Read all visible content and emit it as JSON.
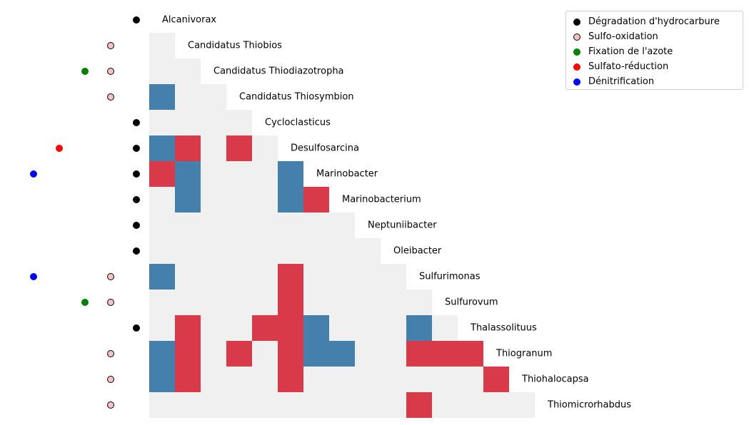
{
  "chart_data": {
    "type": "heatmap",
    "title": "",
    "description_layout": "lower-triangular matrix with genus labels on diagonal and function markers on the left",
    "genera": [
      "Alcanivorax",
      "Candidatus Thiobios",
      "Candidatus Thiodiazotropha",
      "Candidatus Thiosymbion",
      "Cycloclasticus",
      "Desulfosarcina",
      "Marinobacter",
      "Marinobacterium",
      "Neptuniibacter",
      "Oleibacter",
      "Sulfurimonas",
      "Sulfurovum",
      "Thalassolituus",
      "Thiogranum",
      "Thiohalocapsa",
      "Thiomicrorhabdus"
    ],
    "matrix_value_meaning": "1 = red association, -1 = blue association, 0 = none (light grey)",
    "matrix": [
      [],
      [
        0
      ],
      [
        0,
        0
      ],
      [
        -1,
        0,
        0
      ],
      [
        0,
        0,
        0,
        0
      ],
      [
        -1,
        1,
        0,
        1,
        0
      ],
      [
        1,
        -1,
        0,
        0,
        0,
        -1
      ],
      [
        0,
        -1,
        0,
        0,
        0,
        -1,
        1
      ],
      [
        0,
        0,
        0,
        0,
        0,
        0,
        0,
        0
      ],
      [
        0,
        0,
        0,
        0,
        0,
        0,
        0,
        0,
        0
      ],
      [
        -1,
        0,
        0,
        0,
        0,
        1,
        0,
        0,
        0,
        0
      ],
      [
        0,
        0,
        0,
        0,
        0,
        1,
        0,
        0,
        0,
        0,
        0
      ],
      [
        0,
        1,
        0,
        0,
        1,
        1,
        -1,
        0,
        0,
        0,
        -1,
        0
      ],
      [
        -1,
        1,
        0,
        1,
        0,
        1,
        -1,
        -1,
        0,
        0,
        1,
        1,
        1
      ],
      [
        -1,
        1,
        0,
        0,
        0,
        1,
        0,
        0,
        0,
        0,
        0,
        0,
        0,
        1
      ],
      [
        0,
        0,
        0,
        0,
        0,
        0,
        0,
        0,
        0,
        0,
        1,
        0,
        0,
        0,
        0
      ]
    ],
    "colors": {
      "positive": "#d93a49",
      "negative": "#4480ab",
      "neutral": "#f0f0f0"
    },
    "functions": [
      {
        "label": "Dégradation d'hydrocarbure",
        "color": "#000000",
        "edge": "#000000"
      },
      {
        "label": "Sulfo-oxidation",
        "color": "#f4c2c2",
        "edge": "#000000"
      },
      {
        "label": "Fixation de l'azote",
        "color": "#008000",
        "edge": "#008000"
      },
      {
        "label": "Sulfato-réduction",
        "color": "#ff0000",
        "edge": "#ff0000"
      },
      {
        "label": "Dénitrification",
        "color": "#0000ff",
        "edge": "#0000ff"
      }
    ],
    "genus_functions": [
      [
        0
      ],
      [
        1
      ],
      [
        1,
        2
      ],
      [
        1
      ],
      [
        0
      ],
      [
        0,
        3
      ],
      [
        0,
        4
      ],
      [
        0
      ],
      [
        0
      ],
      [
        0
      ],
      [
        1,
        4
      ],
      [
        1,
        2
      ],
      [
        0
      ],
      [
        1
      ],
      [
        1
      ],
      [
        1
      ]
    ],
    "legend": {
      "position": "top-right"
    }
  }
}
